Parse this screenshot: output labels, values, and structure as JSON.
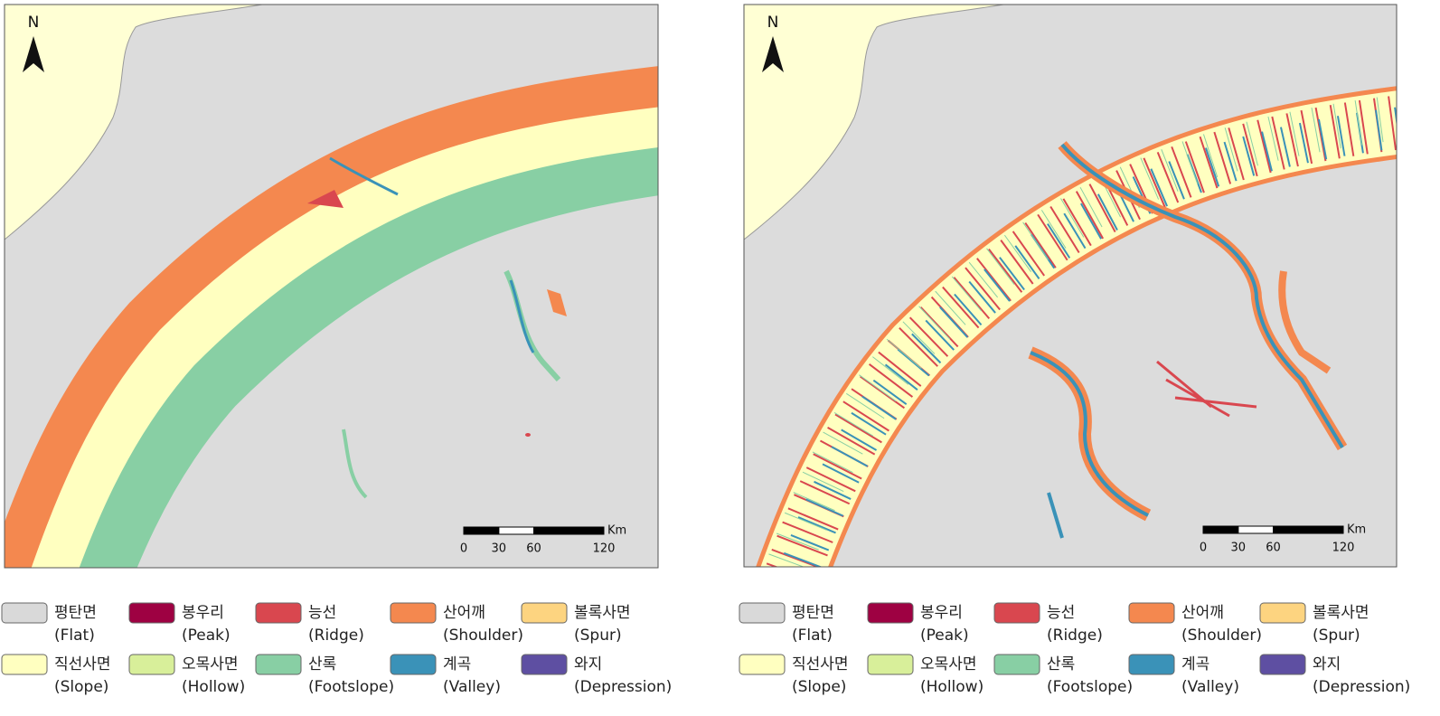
{
  "panels": [
    {
      "north": "N",
      "scale_bar": {
        "unit": "Km",
        "ticks": [
          0,
          30,
          60,
          120
        ]
      },
      "legend": [
        {
          "ko": "평탄면",
          "en": "(Flat)",
          "color": "#d9d9d9"
        },
        {
          "ko": "봉우리",
          "en": "(Peak)",
          "color": "#9e0142"
        },
        {
          "ko": "능선",
          "en": "(Ridge)",
          "color": "#d9474f"
        },
        {
          "ko": "산어깨",
          "en": "(Shoulder)",
          "color": "#f4884f"
        },
        {
          "ko": "볼록사면",
          "en": "(Spur)",
          "color": "#fdd480"
        },
        {
          "ko": "직선사면",
          "en": "(Slope)",
          "color": "#ffffc0"
        },
        {
          "ko": "오목사면",
          "en": "(Hollow)",
          "color": "#d8ef9a"
        },
        {
          "ko": "산록",
          "en": "(Footslope)",
          "color": "#88cfa4"
        },
        {
          "ko": "계곡",
          "en": "(Valley)",
          "color": "#3a92b8"
        },
        {
          "ko": "와지",
          "en": "(Depression)",
          "color": "#5e4fa2"
        }
      ]
    },
    {
      "north": "N",
      "scale_bar": {
        "unit": "Km",
        "ticks": [
          0,
          30,
          60,
          120
        ]
      },
      "legend": [
        {
          "ko": "평탄면",
          "en": "(Flat)",
          "color": "#d9d9d9"
        },
        {
          "ko": "봉우리",
          "en": "(Peak)",
          "color": "#9e0142"
        },
        {
          "ko": "능선",
          "en": "(Ridge)",
          "color": "#d9474f"
        },
        {
          "ko": "산어깨",
          "en": "(Shoulder)",
          "color": "#f4884f"
        },
        {
          "ko": "볼록사면",
          "en": "(Spur)",
          "color": "#fdd480"
        },
        {
          "ko": "직선사면",
          "en": "(Slope)",
          "color": "#ffffc0"
        },
        {
          "ko": "오목사면",
          "en": "(Hollow)",
          "color": "#d8ef9a"
        },
        {
          "ko": "산록",
          "en": "(Footslope)",
          "color": "#88cfa4"
        },
        {
          "ko": "계곡",
          "en": "(Valley)",
          "color": "#3a92b8"
        },
        {
          "ko": "와지",
          "en": "(Depression)",
          "color": "#5e4fa2"
        }
      ]
    }
  ]
}
